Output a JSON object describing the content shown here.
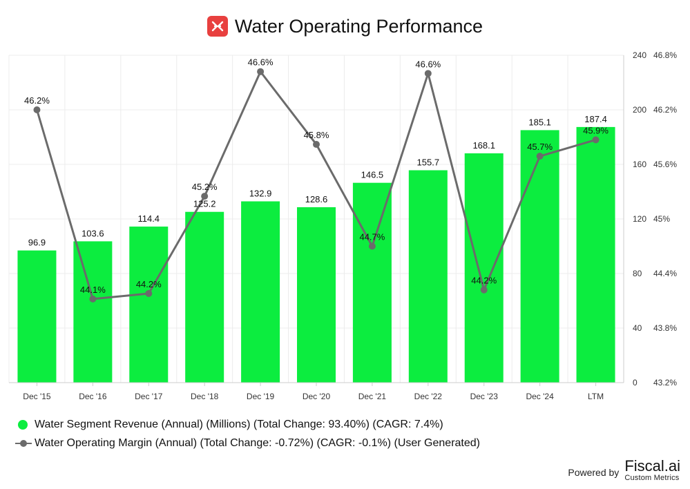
{
  "colors": {
    "bar": "#0ced3f",
    "line": "#6b6b6b",
    "grid": "#ececec",
    "axis": "#cccccc",
    "logo": "#e8403f"
  },
  "chart_data": {
    "type": "bar",
    "title": "Water Operating Performance",
    "categories": [
      "Dec '15",
      "Dec '16",
      "Dec '17",
      "Dec '18",
      "Dec '19",
      "Dec '20",
      "Dec '21",
      "Dec '22",
      "Dec '23",
      "Dec '24",
      "LTM"
    ],
    "series": [
      {
        "name": "Water Segment Revenue (Annual) (Millions) (Total Change: 93.40%) (CAGR: 7.4%)",
        "kind": "bar",
        "axis": "left",
        "values": [
          96.9,
          103.6,
          114.4,
          125.2,
          132.9,
          128.6,
          146.5,
          155.7,
          168.1,
          185.1,
          187.4
        ],
        "labels": [
          "96.9",
          "103.6",
          "114.4",
          "125.2",
          "132.9",
          "128.6",
          "146.5",
          "155.7",
          "168.1",
          "185.1",
          "187.4"
        ]
      },
      {
        "name": "Water Operating Margin (Annual) (Total Change: -0.72%) (CAGR: -0.1%) (User Generated)",
        "kind": "line",
        "axis": "right",
        "values": [
          46.2,
          44.1,
          44.2,
          45.2,
          46.6,
          45.8,
          44.7,
          46.6,
          44.2,
          45.7,
          45.9
        ],
        "plot_values": [
          46.2,
          44.12,
          44.18,
          45.25,
          46.62,
          45.82,
          44.7,
          46.6,
          44.22,
          45.69,
          45.87
        ],
        "labels": [
          "46.2%",
          "44.1%",
          "44.2%",
          "45.2%",
          "46.6%",
          "45.8%",
          "44.7%",
          "46.6%",
          "44.2%",
          "45.7%",
          "45.9%"
        ]
      }
    ],
    "y_left": {
      "min": 0,
      "max": 240,
      "ticks": [
        "0",
        "40",
        "80",
        "120",
        "160",
        "200",
        "240"
      ]
    },
    "y_right": {
      "min": 43.2,
      "max": 46.8,
      "ticks": [
        "43.2%",
        "43.8%",
        "44.4%",
        "45%",
        "45.6%",
        "46.2%",
        "46.8%"
      ]
    },
    "grid": true,
    "legend_position": "bottom-left"
  },
  "footer": {
    "powered_by": "Powered by",
    "brand_name": "Fiscal.ai",
    "brand_sub": "Custom Metrics"
  }
}
